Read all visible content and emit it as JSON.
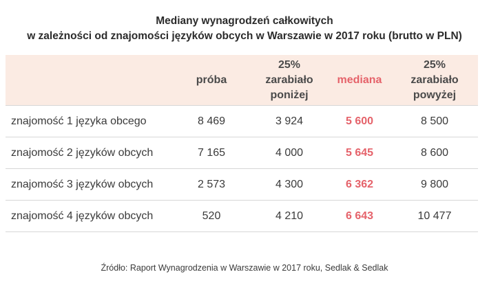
{
  "title": {
    "line1": "Mediany wynagrodzeń całkowitych",
    "line2": "w zależności od znajomości języków obcych w Warszawie w 2017 roku (brutto w PLN)"
  },
  "table": {
    "headers": {
      "sample": "próba",
      "p25": [
        "25%",
        "zarabiało",
        "poniżej"
      ],
      "median": "mediana",
      "p75": [
        "25%",
        "zarabiało",
        "powyżej"
      ]
    },
    "rows": [
      {
        "label": "znajomość 1 języka obcego",
        "sample": "8 469",
        "p25": "3 924",
        "median": "5 600",
        "p75": "8 500"
      },
      {
        "label": "znajomość 2 języków obcych",
        "sample": "7 165",
        "p25": "4 000",
        "median": "5 645",
        "p75": "8 600"
      },
      {
        "label": "znajomość 3 języków obcych",
        "sample": "2 573",
        "p25": "4 300",
        "median": "6 362",
        "p75": "9 800"
      },
      {
        "label": "znajomość 4 języków obcych",
        "sample": "520",
        "p25": "4 210",
        "median": "6 643",
        "p75": "10 477"
      }
    ]
  },
  "source": "Źródło: Raport Wynagrodzenia w Warszawie w 2017 roku, Sedlak & Sedlak",
  "colors": {
    "header_background": "#fbebe3",
    "median_accent": "#e5626a"
  }
}
